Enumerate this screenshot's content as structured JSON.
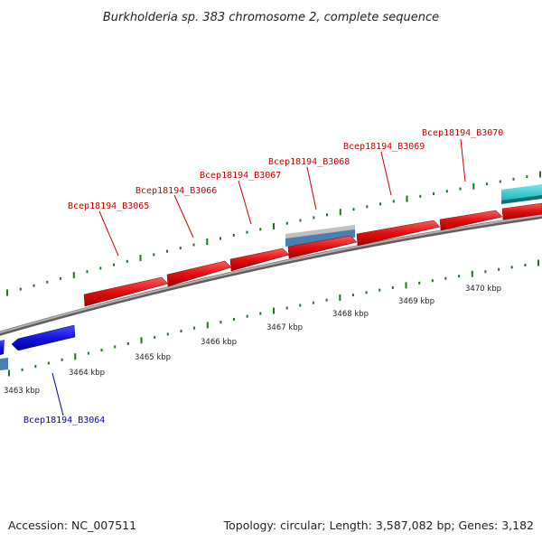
{
  "title": "Burkholderia sp. 383 chromosome 2, complete sequence",
  "footer": {
    "accession": "Accession: NC_007511",
    "topology": "Topology: circular; Length: 3,587,082 bp; Genes: 3,182"
  },
  "colors": {
    "forward_gene": "#dd1111",
    "reverse_gene": "#1a1ae0",
    "forward_label": "#cc0000",
    "reverse_label": "#0000aa",
    "backbone": "#888888",
    "tick": "#1a7a1a",
    "feature_cyan": "#22c4c8",
    "feature_steel": "#4a7fb0"
  },
  "genes_forward": [
    {
      "label": "Bcep18194_B3065"
    },
    {
      "label": "Bcep18194_B3066"
    },
    {
      "label": "Bcep18194_B3067"
    },
    {
      "label": "Bcep18194_B3068"
    },
    {
      "label": "Bcep18194_B3069"
    },
    {
      "label": "Bcep18194_B3070"
    }
  ],
  "genes_reverse": [
    {
      "label": "Bcep18194_B3064"
    }
  ],
  "tick_labels": [
    "3463 kbp",
    "3464 kbp",
    "3465 kbp",
    "3466 kbp",
    "3467 kbp",
    "3468 kbp",
    "3469 kbp",
    "3470 kbp"
  ]
}
